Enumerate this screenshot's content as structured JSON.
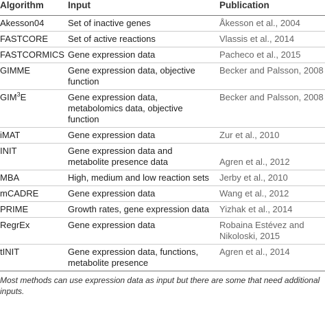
{
  "header": {
    "algorithm": "Algorithm",
    "input": "Input",
    "publication": "Publication"
  },
  "table": {
    "rows": [
      {
        "algorithm": "Akesson04",
        "input": [
          "Set of inactive genes"
        ],
        "publication": [
          "Åkesson et al., 2004"
        ]
      },
      {
        "algorithm": "FASTCORE",
        "input": [
          "Set of active reactions"
        ],
        "publication": [
          "Vlassis et al., 2014"
        ]
      },
      {
        "algorithm": "FASTCORMICS",
        "input": [
          "Gene expression data"
        ],
        "publication": [
          "Pacheco et al., 2015"
        ]
      },
      {
        "algorithm": "GIMME",
        "input": [
          "Gene expression data, objective",
          "function"
        ],
        "publication": [
          "Becker and Palsson, 2008"
        ]
      },
      {
        "algorithm": "GIM",
        "algorithm_sup": "3",
        "algorithm_suffix": "E",
        "input": [
          "Gene expression data,",
          "metabolomics data, objective",
          "function"
        ],
        "publication": [
          "Becker and Palsson, 2008"
        ]
      },
      {
        "algorithm": "iMAT",
        "input": [
          "Gene expression data"
        ],
        "publication": [
          "Zur et al., 2010"
        ]
      },
      {
        "algorithm": "INIT",
        "input": [
          "Gene expression data and",
          "metabolite presence data"
        ],
        "publication": [
          "Agren et al., 2012"
        ],
        "publication_bottom": true
      },
      {
        "algorithm": "MBA",
        "input": [
          "High, medium and low reaction sets"
        ],
        "publication": [
          "Jerby et al., 2010"
        ]
      },
      {
        "algorithm": "mCADRE",
        "input": [
          "Gene expression data"
        ],
        "publication": [
          "Wang et al., 2012"
        ]
      },
      {
        "algorithm": "PRIME",
        "input": [
          "Growth rates, gene expression data"
        ],
        "publication": [
          "Yizhak et al., 2014"
        ]
      },
      {
        "algorithm": "RegrEx",
        "input": [
          "Gene expression data"
        ],
        "publication": [
          "Robaina Estévez and",
          "Nikoloski, 2015"
        ]
      },
      {
        "algorithm": "tINIT",
        "input": [
          "Gene expression data, functions,",
          "metabolite presence"
        ],
        "publication": [
          "Agren et al., 2014"
        ]
      }
    ]
  },
  "footnote": [
    "Most methods can use expression data as input but there are some that need additional",
    "inputs."
  ]
}
